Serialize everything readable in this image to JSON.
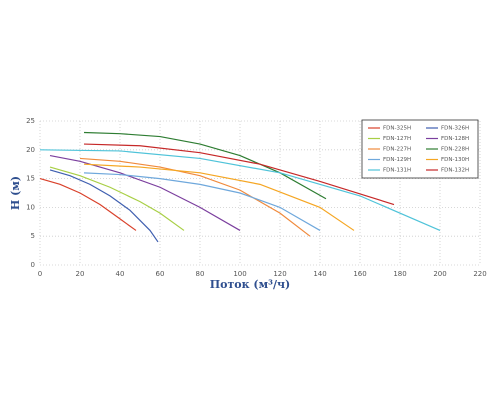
{
  "chart_data": {
    "type": "line",
    "x_label": "Поток (м³/ч)",
    "y_label": "H (м)",
    "xlim": [
      0,
      220
    ],
    "xticks": [
      0,
      20,
      40,
      60,
      80,
      100,
      120,
      140,
      160,
      180,
      200,
      220
    ],
    "ylim": [
      0,
      25
    ],
    "yticks": [
      0,
      5,
      10,
      15,
      20,
      25
    ],
    "grid": true,
    "legend": "upper-right",
    "series": [
      {
        "name": "FDN-325H",
        "color": "#d9412b",
        "x": [
          0,
          10,
          20,
          30,
          40,
          48
        ],
        "values": [
          15,
          14,
          12.5,
          10.5,
          8,
          6
        ]
      },
      {
        "name": "FDN-326H",
        "color": "#3f5fb0",
        "x": [
          5,
          15,
          25,
          35,
          45,
          55,
          59
        ],
        "values": [
          16.5,
          15.5,
          14,
          12,
          9.5,
          6,
          4
        ]
      },
      {
        "name": "FDN-127H",
        "color": "#a8cf45",
        "x": [
          5,
          20,
          35,
          50,
          60,
          72
        ],
        "values": [
          17,
          15.5,
          13.5,
          11,
          9,
          6
        ]
      },
      {
        "name": "FDN-128H",
        "color": "#7b3f9e",
        "x": [
          5,
          20,
          40,
          60,
          80,
          100
        ],
        "values": [
          19,
          18,
          16,
          13.5,
          10,
          6
        ]
      },
      {
        "name": "FDN-227H",
        "color": "#f08a3c",
        "x": [
          20,
          40,
          60,
          80,
          100,
          120,
          135
        ],
        "values": [
          18.5,
          18,
          17,
          15.5,
          13,
          9,
          5
        ]
      },
      {
        "name": "FDN-228H",
        "color": "#2e7d32",
        "x": [
          22,
          40,
          60,
          80,
          100,
          120,
          143
        ],
        "values": [
          23,
          22.8,
          22.3,
          21,
          19,
          16,
          11.5
        ]
      },
      {
        "name": "FDN-129H",
        "color": "#6fa8dc",
        "x": [
          22,
          40,
          60,
          80,
          100,
          120,
          140
        ],
        "values": [
          16,
          15.7,
          15,
          14,
          12.5,
          10,
          6
        ]
      },
      {
        "name": "FDN-130H",
        "color": "#f5a623",
        "x": [
          22,
          50,
          80,
          110,
          140,
          157
        ],
        "values": [
          17.5,
          17,
          16,
          14,
          10,
          6
        ]
      },
      {
        "name": "FDN-131H",
        "color": "#4fc3d9",
        "x": [
          0,
          40,
          80,
          120,
          160,
          200
        ],
        "values": [
          20,
          19.8,
          18.5,
          16,
          12,
          6
        ]
      },
      {
        "name": "FDN-132H",
        "color": "#c62828",
        "x": [
          22,
          50,
          80,
          110,
          140,
          177
        ],
        "values": [
          21,
          20.7,
          19.5,
          17.5,
          14.5,
          10.5
        ]
      }
    ]
  }
}
